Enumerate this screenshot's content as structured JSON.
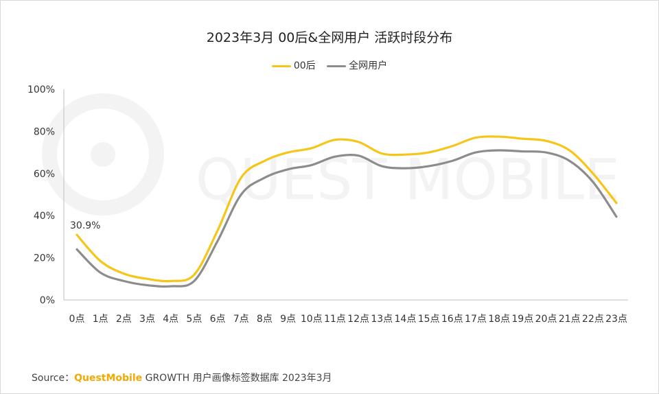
{
  "chart_data": {
    "type": "line",
    "title": "2023年3月 00后&全网用户 活跃时段分布",
    "categories": [
      "0点",
      "1点",
      "2点",
      "3点",
      "4点",
      "5点",
      "6点",
      "7点",
      "8点",
      "9点",
      "10点",
      "11点",
      "12点",
      "13点",
      "14点",
      "15点",
      "16点",
      "17点",
      "18点",
      "19点",
      "20点",
      "21点",
      "22点",
      "23点"
    ],
    "series": [
      {
        "name": "00后",
        "color": "#f5c518",
        "values": [
          30.9,
          18.5,
          12.5,
          10,
          9,
          12,
          33,
          58,
          66,
          70,
          72,
          76,
          75,
          69.5,
          69,
          70,
          73,
          77,
          77.5,
          76.5,
          75.5,
          71,
          60,
          46
        ]
      },
      {
        "name": "全网用户",
        "color": "#8c8c8c",
        "values": [
          24,
          13,
          9,
          7,
          6.5,
          9,
          28,
          50,
          58,
          62,
          64,
          68,
          68.5,
          63.5,
          62.5,
          63.5,
          66,
          70,
          71,
          70.5,
          70,
          66,
          56,
          39.5
        ]
      }
    ],
    "ylim": [
      0,
      100
    ],
    "yticks": [
      "0%",
      "20%",
      "40%",
      "60%",
      "80%",
      "100%"
    ],
    "annotation": {
      "category": "0点",
      "series": "00后",
      "text": "30.9%"
    },
    "legend": "top-center",
    "grid": false,
    "watermark": "QUEST MOBILE"
  },
  "source": {
    "label": "Source：",
    "brand": "QuestMobile",
    "text": " GROWTH 用户画像标签数据库 2023年3月"
  }
}
